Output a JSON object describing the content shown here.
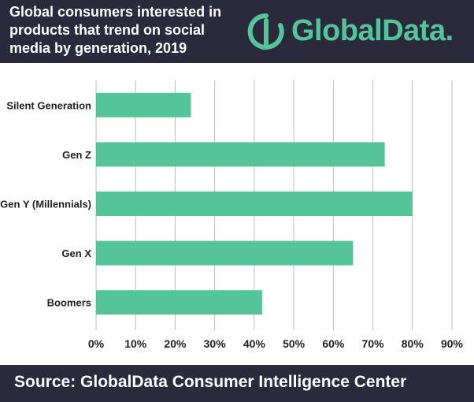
{
  "header": {
    "title_lines": [
      "Global consumers interested in",
      "products that trend on social",
      "media by generation, 2019"
    ],
    "logo_text": "GlobalData."
  },
  "footer": {
    "source": "Source: GlobalData Consumer Intelligence Center"
  },
  "colors": {
    "header_bg": "#2b2a3d",
    "bar": "#55c49b",
    "logo": "#55c49b",
    "grid": "#bdbdbd"
  },
  "chart_data": {
    "type": "bar",
    "orientation": "horizontal",
    "categories": [
      "Silent Generation",
      "Gen Z",
      "Gen Y (Millennials)",
      "Gen X",
      "Boomers"
    ],
    "values": [
      24,
      73,
      80,
      65,
      42
    ],
    "xlim": [
      0,
      90
    ],
    "xticks": [
      "0%",
      "10%",
      "20%",
      "30%",
      "40%",
      "50%",
      "60%",
      "70%",
      "80%",
      "90%"
    ],
    "grid": true,
    "legend": "none"
  }
}
